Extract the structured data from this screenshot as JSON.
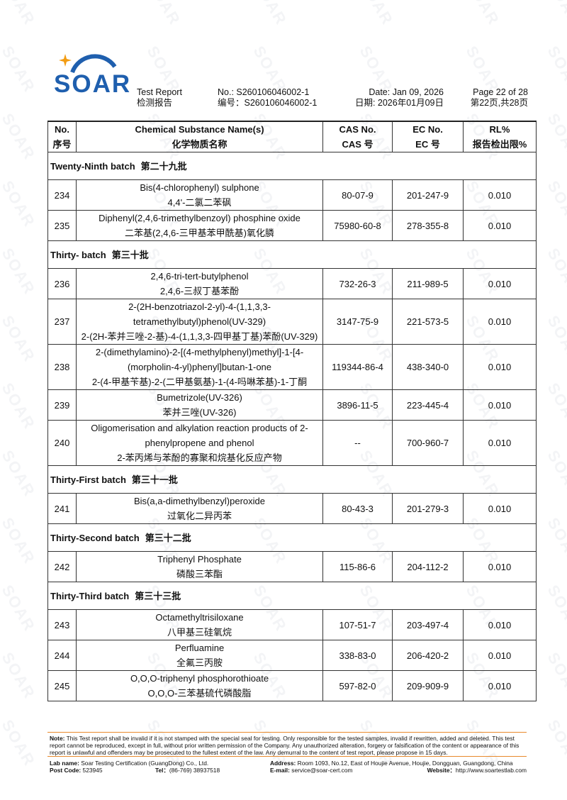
{
  "watermark": "SOAR",
  "logo": {
    "text": "SOAR"
  },
  "header": {
    "report_en": "Test Report",
    "report_cn": "检测报告",
    "no_en": "No.: S260106046002-1",
    "no_cn": "编号：S260106046002-1",
    "date_en": "Date: Jan 09, 2026",
    "date_cn": "日期: 2026年01月09日",
    "page_en": "Page 22 of 28",
    "page_cn": "第22页,共28页"
  },
  "table": {
    "columns": [
      {
        "en": "No.",
        "cn": "序号"
      },
      {
        "en": "Chemical Substance Name(s)",
        "cn": "化学物质名称"
      },
      {
        "en": "CAS No.",
        "cn": "CAS 号"
      },
      {
        "en": "EC No.",
        "cn": "EC 号"
      },
      {
        "en": "RL%",
        "cn": "报告检出限%"
      }
    ],
    "rows": [
      {
        "batch_en": "Twenty-Ninth batch",
        "batch_cn": "第二十九批"
      },
      {
        "no": "234",
        "name_en": "Bis(4-chlorophenyl) sulphone",
        "name_cn": "4,4'-二氯二苯砜",
        "cas": "80-07-9",
        "ec": "201-247-9",
        "rl": "0.010"
      },
      {
        "no": "235",
        "name_en": "Diphenyl(2,4,6-trimethylbenzoyl) phosphine oxide",
        "name_cn": "二苯基(2,4,6-三甲基苯甲酰基)氧化膦",
        "cas": "75980-60-8",
        "ec": "278-355-8",
        "rl": "0.010"
      },
      {
        "batch_en": "Thirty- batch",
        "batch_cn": "第三十批"
      },
      {
        "no": "236",
        "name_en": "2,4,6-tri-tert-butylphenol",
        "name_cn": "2,4,6-三叔丁基苯酚",
        "cas": "732-26-3",
        "ec": "211-989-5",
        "rl": "0.010"
      },
      {
        "no": "237",
        "name_en": "2-(2H-benzotriazol-2-yl)-4-(1,1,3,3-tetramethylbutyl)phenol(UV-329)",
        "name_cn": "2-(2H-苯并三唑-2-基)-4-(1,1,3,3-四甲基丁基)苯酚(UV-329)",
        "cas": "3147-75-9",
        "ec": "221-573-5",
        "rl": "0.010"
      },
      {
        "no": "238",
        "name_en": "2-(dimethylamino)-2-[(4-methylphenyl)methyl]-1-[4-(morpholin-4-yl)phenyl]butan-1-one",
        "name_cn": "2-(4-甲基苄基)-2-(二甲基氨基)-1-(4-吗啉苯基)-1-丁酮",
        "cas": "119344-86-4",
        "ec": "438-340-0",
        "rl": "0.010"
      },
      {
        "no": "239",
        "name_en": "Bumetrizole(UV-326)",
        "name_cn": "苯并三唑(UV-326)",
        "cas": "3896-11-5",
        "ec": "223-445-4",
        "rl": "0.010"
      },
      {
        "no": "240",
        "name_en": "Oligomerisation and alkylation reaction products of 2-phenylpropene and phenol",
        "name_cn": "2-苯丙烯与苯酚的寡聚和烷基化反应产物",
        "cas": "--",
        "ec": "700-960-7",
        "rl": "0.010"
      },
      {
        "batch_en": "Thirty-First batch",
        "batch_cn": "第三十一批"
      },
      {
        "no": "241",
        "name_en": "Bis(a,a-dimethylbenzyl)peroxide",
        "name_cn": "过氧化二异丙苯",
        "cas": "80-43-3",
        "ec": "201-279-3",
        "rl": "0.010"
      },
      {
        "batch_en": "Thirty-Second batch",
        "batch_cn": "第三十二批"
      },
      {
        "no": "242",
        "name_en": "Triphenyl Phosphate",
        "name_cn": "磷酸三苯酯",
        "cas": "115-86-6",
        "ec": "204-112-2",
        "rl": "0.010"
      },
      {
        "batch_en": "Thirty-Third batch",
        "batch_cn": "第三十三批"
      },
      {
        "no": "243",
        "name_en": "Octamethyltrisiloxane",
        "name_cn": "八甲基三硅氧烷",
        "cas": "107-51-7",
        "ec": "203-497-4",
        "rl": "0.010"
      },
      {
        "no": "244",
        "name_en": "Perfluamine",
        "name_cn": "全氟三丙胺",
        "cas": "338-83-0",
        "ec": "206-420-2",
        "rl": "0.010"
      },
      {
        "no": "245",
        "name_en": "O,O,O-triphenyl phosphorothioate",
        "name_cn": "O,O,O-三苯基硫代磷酸脂",
        "cas": "597-82-0",
        "ec": "209-909-9",
        "rl": "0.010"
      }
    ]
  },
  "footer": {
    "note_label": "Note:",
    "note_text": "This Test report shall be invalid if it is not stamped with the special seal for testing. Only responsible for the tested samples, invalid if rewritten, added and deleted. This test report cannot be reproduced, except in full, without prior written permission of the Company.   Any unauthorized alteration, forgery or falsification of the content or appearance of this report is unlawful and offenders may be prosecuted to the fullest extent of the law. Any demurral to the content of test report, please propose in 15 days.",
    "lab_label": "Lab name:",
    "lab_value": "Soar Testing Certification (GuangDong) Co., Ltd.",
    "address_label": "Address:",
    "address_value": "Room 1093, No.12, East of Houjie Avenue, Houjie, Dongguan, Guangdong, China",
    "post_label": "Post Code:",
    "post_value": "523945",
    "tel_label": "Tel：",
    "tel_value": "(86-769) 38937518",
    "email_label": "E-mail:",
    "email_value": "service@soar-cert.com",
    "web_label": "Website：",
    "web_value": "http://www.soartestlab.com"
  }
}
